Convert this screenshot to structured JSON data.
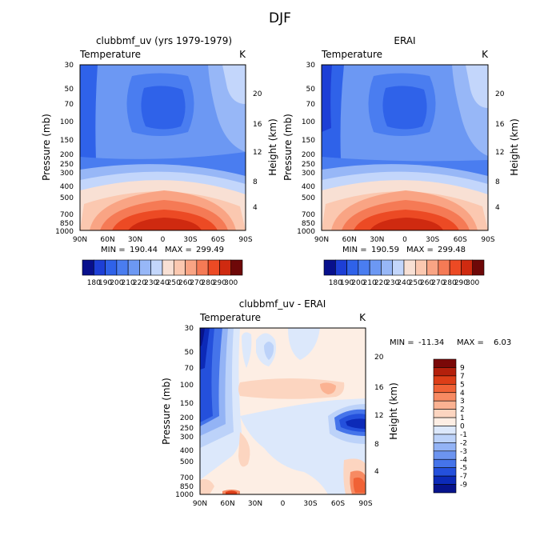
{
  "figure": {
    "title": "DJF"
  },
  "chart_data": [
    {
      "type": "heatmap",
      "title": "clubbmf_uv (yrs 1979-1979)",
      "field_label": "Temperature",
      "unit_label": "K",
      "ylabel": "Pressure (mb)",
      "ylabel_right": "Height (km)",
      "x_ticks": [
        "90N",
        "60N",
        "30N",
        "0",
        "30S",
        "60S",
        "90S"
      ],
      "y_ticks": [
        "30",
        "50",
        "70",
        "100",
        "150",
        "200",
        "250",
        "300",
        "400",
        "500",
        "700",
        "850",
        "1000"
      ],
      "y_ticks_right": [
        "20",
        "16",
        "12",
        "8",
        "4"
      ],
      "min": "190.44",
      "max": "299.49",
      "min_label": "MIN =",
      "max_label": "MAX =",
      "colorbar_labels": [
        "180",
        "190",
        "200",
        "210",
        "220",
        "230",
        "240",
        "250",
        "260",
        "270",
        "280",
        "290",
        "300"
      ],
      "colorbar_colors": [
        "#08108c",
        "#1d3fd6",
        "#2f62e9",
        "#4a7df0",
        "#6c98f3",
        "#97b7f7",
        "#c3d6fb",
        "#f8e0d4",
        "#fbc8b0",
        "#f9a484",
        "#f57a55",
        "#ec4a24",
        "#cf2a10",
        "#6e0808"
      ]
    },
    {
      "type": "heatmap",
      "title": "ERAI",
      "field_label": "Temperature",
      "unit_label": "K",
      "ylabel": "Pressure (mb)",
      "ylabel_right": "Height (km)",
      "x_ticks": [
        "90N",
        "60N",
        "30N",
        "0",
        "30S",
        "60S",
        "90S"
      ],
      "y_ticks": [
        "30",
        "50",
        "70",
        "100",
        "150",
        "200",
        "250",
        "300",
        "400",
        "500",
        "700",
        "850",
        "1000"
      ],
      "y_ticks_right": [
        "20",
        "16",
        "12",
        "8",
        "4"
      ],
      "min": "190.59",
      "max": "299.48",
      "min_label": "MIN =",
      "max_label": "MAX =",
      "colorbar_labels": [
        "180",
        "190",
        "200",
        "210",
        "220",
        "230",
        "240",
        "250",
        "260",
        "270",
        "280",
        "290",
        "300"
      ],
      "colorbar_colors": [
        "#08108c",
        "#1d3fd6",
        "#2f62e9",
        "#4a7df0",
        "#6c98f3",
        "#97b7f7",
        "#c3d6fb",
        "#f8e0d4",
        "#fbc8b0",
        "#f9a484",
        "#f57a55",
        "#ec4a24",
        "#cf2a10",
        "#6e0808"
      ]
    },
    {
      "type": "heatmap",
      "title": "clubbmf_uv - ERAI",
      "field_label": "Temperature",
      "unit_label": "K",
      "ylabel": "Pressure (mb)",
      "ylabel_right": "Height (km)",
      "x_ticks": [
        "90N",
        "60N",
        "30N",
        "0",
        "30S",
        "60S",
        "90S"
      ],
      "y_ticks": [
        "30",
        "50",
        "70",
        "100",
        "150",
        "200",
        "250",
        "300",
        "400",
        "500",
        "700",
        "850",
        "1000"
      ],
      "y_ticks_right": [
        "20",
        "16",
        "12",
        "8",
        "4"
      ],
      "min": "-11.34",
      "max": "6.03",
      "min_label": "MIN =",
      "max_label": "MAX =",
      "colorbar_labels": [
        "9",
        "7",
        "5",
        "4",
        "3",
        "2",
        "1",
        "0",
        "-1",
        "-2",
        "-3",
        "-4",
        "-5",
        "-7",
        "-9"
      ],
      "colorbar_colors": [
        "#7a0808",
        "#b4200c",
        "#dd3e18",
        "#f06236",
        "#f78a62",
        "#fbb292",
        "#fcd5c0",
        "#fdeee4",
        "#dce8fb",
        "#bcd2f9",
        "#93b3f5",
        "#6c94f0",
        "#4574ea",
        "#2450dc",
        "#0c2ab8",
        "#07138c"
      ]
    }
  ]
}
